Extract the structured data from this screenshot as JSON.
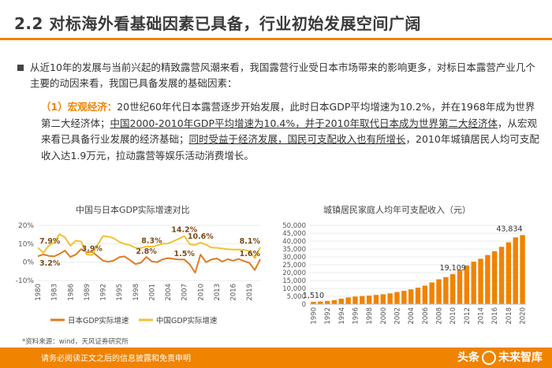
{
  "header": {
    "title": "2.2 对标海外看基础因素已具备，行业初始发展空间广阔"
  },
  "bullet": {
    "text": "从近10年的发展与当前兴起的精致露营风潮来看，我国露营行业受日本市场带来的影响更多，对标日本露营产业几个主要的动因来看，我国已具备发展的基础因素："
  },
  "paragraph": {
    "label": "（1）宏观经济：",
    "p1": "20世纪60年代日本露营逐步开始发展，此时日本GDP平均增速为10.2%，并在1968年成为世界第二大经济体；",
    "p2": "中国2000-2010年GDP平均增速为10.4%，并于2010年取代日本成为世界第二大经济体",
    "p3": "，从宏观来看已具备行业发展的经济基础；",
    "p4": "同时受益于经济发展，国民可支配收入也有所增长",
    "p5": "，2010年城镇居民人均可支配收入达1.9万元，拉动露营等娱乐活动消费增长。"
  },
  "chart_data": [
    {
      "type": "line",
      "title": "中国与日本GDP实际增速对比",
      "x": [
        1980,
        1981,
        1982,
        1983,
        1984,
        1985,
        1986,
        1987,
        1988,
        1989,
        1990,
        1991,
        1992,
        1993,
        1994,
        1995,
        1996,
        1997,
        1998,
        1999,
        2000,
        2001,
        2002,
        2003,
        2004,
        2005,
        2006,
        2007,
        2008,
        2009,
        2010,
        2011,
        2012,
        2013,
        2014,
        2015,
        2016,
        2017,
        2018,
        2019,
        2020,
        2021
      ],
      "xticks": [
        "1980",
        "1983",
        "1986",
        "1989",
        "1992",
        "1995",
        "1998",
        "2001",
        "2004",
        "2007",
        "2010",
        "2013",
        "2016",
        "2019"
      ],
      "yticks": [
        "20%",
        "10%",
        "0%",
        "-10%"
      ],
      "ylim": [
        -10,
        20
      ],
      "series": [
        {
          "name": "日本GDP实际增速",
          "color": "#e07b22",
          "values": [
            3.2,
            4.2,
            3.4,
            3.1,
            4.5,
            6.3,
            2.8,
            4.1,
            7.1,
            5.4,
            5.6,
            3.3,
            0.8,
            0.2,
            0.9,
            2.7,
            3.1,
            1.1,
            -1.1,
            -0.3,
            2.8,
            0.4,
            0.0,
            1.5,
            2.2,
            1.8,
            1.4,
            1.5,
            -1.2,
            -5.7,
            4.1,
            0.0,
            1.4,
            2.0,
            0.3,
            1.6,
            0.8,
            1.7,
            0.6,
            -0.4,
            -4.3,
            1.6
          ]
        },
        {
          "name": "中国GDP实际增速",
          "color": "#f5c131",
          "values": [
            7.9,
            5.1,
            9.0,
            10.8,
            15.2,
            13.4,
            8.9,
            11.7,
            11.2,
            4.2,
            3.9,
            9.3,
            14.2,
            13.9,
            13.0,
            11.0,
            9.9,
            9.2,
            7.8,
            7.7,
            8.5,
            8.3,
            9.1,
            10.0,
            10.1,
            11.4,
            12.7,
            14.2,
            9.7,
            9.4,
            10.6,
            9.6,
            7.9,
            7.8,
            7.4,
            7.0,
            6.8,
            6.9,
            6.7,
            6.0,
            2.2,
            8.1
          ]
        }
      ],
      "annotations": [
        {
          "label": "7.9%",
          "series": 1,
          "index": 0
        },
        {
          "label": "3.2%",
          "series": 0,
          "index": 0
        },
        {
          "label": "3.9%",
          "series": 1,
          "index": 10
        },
        {
          "label": "8.3%",
          "series": 1,
          "index": 21
        },
        {
          "label": "2.8%",
          "series": 0,
          "index": 20
        },
        {
          "label": "14.2%",
          "series": 1,
          "index": 27
        },
        {
          "label": "10.6%",
          "series": 1,
          "index": 30
        },
        {
          "label": "1.5%",
          "series": 0,
          "index": 27
        },
        {
          "label": "8.1%",
          "series": 1,
          "index": 41
        },
        {
          "label": "1.6%",
          "series": 0,
          "index": 41
        }
      ]
    },
    {
      "type": "bar",
      "title": "城镇居民家庭人均年可支配收入（元）",
      "categories": [
        "1990",
        "1991",
        "1992",
        "1993",
        "1994",
        "1995",
        "1996",
        "1997",
        "1998",
        "1999",
        "2000",
        "2001",
        "2002",
        "2003",
        "2004",
        "2005",
        "2006",
        "2007",
        "2008",
        "2009",
        "2010",
        "2011",
        "2012",
        "2013",
        "2014",
        "2015",
        "2016",
        "2017",
        "2018",
        "2019",
        "2020"
      ],
      "xticks": [
        "1990",
        "1992",
        "1994",
        "1996",
        "1998",
        "2000",
        "2002",
        "2004",
        "2006",
        "2008",
        "2010",
        "2012",
        "2014",
        "2016",
        "2018",
        "2020"
      ],
      "values": [
        1510,
        1701,
        2027,
        2577,
        3496,
        4283,
        4839,
        5160,
        5425,
        5854,
        6280,
        6860,
        7703,
        8472,
        9422,
        10493,
        11759,
        13786,
        15781,
        17175,
        19109,
        21810,
        24565,
        26955,
        28844,
        31195,
        33616,
        36396,
        39251,
        42359,
        43834
      ],
      "yticks": [
        "50,000",
        "45,000",
        "40,000",
        "35,000",
        "30,000",
        "25,000",
        "20,000",
        "15,000",
        "10,000",
        "5,000",
        "0"
      ],
      "ylim": [
        0,
        50000
      ],
      "color": "#f08300",
      "data_labels": [
        {
          "index": 0,
          "label": "1,510"
        },
        {
          "index": 20,
          "label": "19,109"
        },
        {
          "index": 30,
          "label": "43,834"
        }
      ]
    }
  ],
  "source": {
    "text": "*资料来源：wind，天风证券研究所"
  },
  "footer": {
    "text": "请务必阅读正文之后的信息披露和免责申明"
  },
  "watermark": {
    "left": "头条",
    "right": "未来智库"
  }
}
